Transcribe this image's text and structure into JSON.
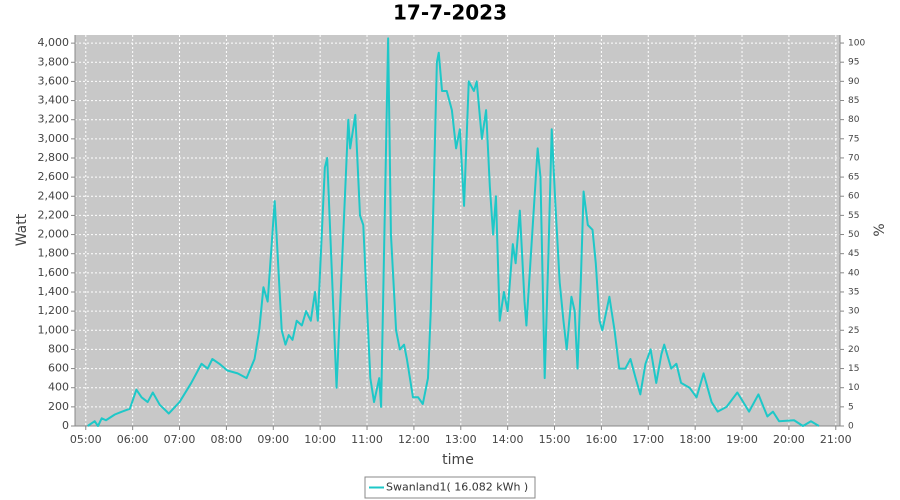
{
  "chart_data": {
    "type": "line",
    "title": "17-7-2023",
    "x_label": "time",
    "y_label": "Watt",
    "y2_label": "%",
    "grid": true,
    "legend_position": "bottom",
    "xlim": [
      4.77,
      21.09
    ],
    "xticks": [
      {
        "value": 5,
        "label": "05:00"
      },
      {
        "value": 6,
        "label": "06:00"
      },
      {
        "value": 7,
        "label": "07:00"
      },
      {
        "value": 8,
        "label": "08:00"
      },
      {
        "value": 9,
        "label": "09:00"
      },
      {
        "value": 10,
        "label": "10:00"
      },
      {
        "value": 11,
        "label": "11:00"
      },
      {
        "value": 12,
        "label": "12:00"
      },
      {
        "value": 13,
        "label": "13:00"
      },
      {
        "value": 14,
        "label": "14:00"
      },
      {
        "value": 15,
        "label": "15:00"
      },
      {
        "value": 16,
        "label": "16:00"
      },
      {
        "value": 17,
        "label": "17:00"
      },
      {
        "value": 18,
        "label": "18:00"
      },
      {
        "value": 19,
        "label": "19:00"
      },
      {
        "value": 20,
        "label": "20:00"
      },
      {
        "value": 21,
        "label": "21:00"
      }
    ],
    "ylim": [
      0,
      4085
    ],
    "yticks": [
      0,
      200,
      400,
      600,
      800,
      {
        "value": 1000,
        "label": "1,000"
      },
      {
        "value": 1200,
        "label": "1,200"
      },
      {
        "value": 1400,
        "label": "1,400"
      },
      {
        "value": 1600,
        "label": "1,600"
      },
      {
        "value": 1800,
        "label": "1,800"
      },
      {
        "value": 2000,
        "label": "2,000"
      },
      {
        "value": 2200,
        "label": "2,200"
      },
      {
        "value": 2400,
        "label": "2,400"
      },
      {
        "value": 2600,
        "label": "2,600"
      },
      {
        "value": 2800,
        "label": "2,800"
      },
      {
        "value": 3000,
        "label": "3,000"
      },
      {
        "value": 3200,
        "label": "3,200"
      },
      {
        "value": 3400,
        "label": "3,400"
      },
      {
        "value": 3600,
        "label": "3,600"
      },
      {
        "value": 3800,
        "label": "3,800"
      },
      {
        "value": 4000,
        "label": "4,000"
      }
    ],
    "y2lim": [
      0,
      102.1
    ],
    "y2ticks": [
      0,
      5,
      10,
      15,
      20,
      25,
      30,
      35,
      40,
      45,
      50,
      55,
      60,
      65,
      70,
      75,
      80,
      85,
      90,
      95,
      100
    ],
    "x": [
      5.04,
      5.19,
      5.26,
      5.34,
      5.43,
      5.62,
      5.77,
      5.94,
      6.08,
      6.19,
      6.32,
      6.43,
      6.58,
      6.73,
      6.77,
      7.0,
      7.25,
      7.47,
      7.6,
      7.7,
      7.85,
      8.02,
      8.24,
      8.43,
      8.6,
      8.7,
      8.79,
      8.88,
      9.03,
      9.07,
      9.18,
      9.26,
      9.33,
      9.41,
      9.5,
      9.61,
      9.7,
      9.8,
      9.89,
      9.95,
      10.1,
      10.15,
      10.35,
      10.6,
      10.64,
      10.75,
      10.85,
      10.92,
      11.07,
      11.15,
      11.26,
      11.3,
      11.45,
      11.51,
      11.62,
      11.7,
      11.79,
      11.85,
      11.98,
      12.09,
      12.19,
      12.3,
      12.36,
      12.49,
      12.53,
      12.6,
      12.7,
      12.81,
      12.9,
      12.98,
      13.07,
      13.17,
      13.28,
      13.34,
      13.45,
      13.54,
      13.62,
      13.69,
      13.75,
      13.83,
      13.92,
      14.0,
      14.11,
      14.17,
      14.26,
      14.36,
      14.4,
      14.51,
      14.64,
      14.7,
      14.79,
      14.87,
      14.94,
      15.02,
      15.11,
      15.19,
      15.26,
      15.36,
      15.43,
      15.49,
      15.56,
      15.62,
      15.71,
      15.81,
      15.88,
      15.96,
      16.02,
      16.17,
      16.28,
      16.38,
      16.51,
      16.62,
      16.73,
      16.83,
      16.94,
      17.05,
      17.17,
      17.28,
      17.34,
      17.49,
      17.6,
      17.7,
      17.88,
      18.03,
      18.18,
      18.35,
      18.48,
      18.67,
      18.9,
      19.15,
      19.35,
      19.54,
      19.66,
      19.79,
      20.11,
      20.3,
      20.47,
      20.64
    ],
    "series": [
      {
        "name": "Swanland1( 16.082 kWh )",
        "color": "#1ec8c8",
        "values": [
          0,
          50,
          0,
          80,
          60,
          120,
          150,
          180,
          380,
          300,
          250,
          350,
          220,
          150,
          130,
          250,
          450,
          650,
          600,
          700,
          650,
          580,
          550,
          500,
          700,
          1000,
          1450,
          1300,
          2350,
          2000,
          1000,
          850,
          950,
          900,
          1100,
          1050,
          1200,
          1100,
          1400,
          1100,
          2700,
          2800,
          400,
          3200,
          2900,
          3250,
          2200,
          2100,
          500,
          250,
          500,
          200,
          4050,
          2000,
          1000,
          800,
          850,
          700,
          300,
          300,
          230,
          500,
          1200,
          3800,
          3900,
          3500,
          3500,
          3300,
          2900,
          3100,
          2300,
          3600,
          3500,
          3600,
          3000,
          3300,
          2500,
          2000,
          2400,
          1100,
          1400,
          1200,
          1900,
          1700,
          2250,
          1300,
          1050,
          1900,
          2900,
          2600,
          500,
          1800,
          3100,
          2300,
          1500,
          1100,
          800,
          1350,
          1200,
          600,
          1500,
          2450,
          2100,
          2050,
          1700,
          1100,
          1000,
          1350,
          1000,
          600,
          600,
          700,
          500,
          330,
          650,
          800,
          450,
          750,
          850,
          600,
          650,
          450,
          400,
          300,
          550,
          250,
          150,
          200,
          350,
          150,
          330,
          100,
          150,
          50,
          60,
          0,
          50,
          0
        ]
      }
    ]
  }
}
